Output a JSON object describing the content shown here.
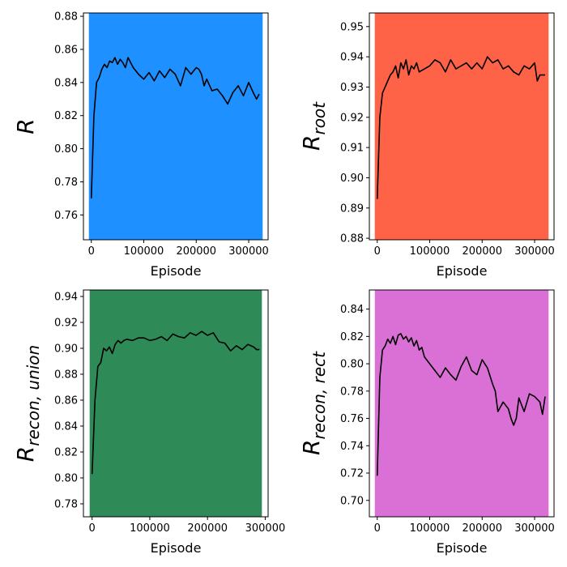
{
  "chart_data": [
    {
      "type": "line",
      "ylabel_main": "R",
      "ylabel_sub": "",
      "xlabel": "Episode",
      "xlim": [
        -15000,
        337000
      ],
      "ylim": [
        0.745,
        0.882
      ],
      "xticks": [
        0,
        100000,
        200000,
        300000
      ],
      "yticks": [
        0.76,
        0.78,
        0.8,
        0.82,
        0.84,
        0.86,
        0.88
      ],
      "ytick_decimals": 2,
      "scatter_color": "#1E90FF",
      "scatter_x_range": [
        0,
        322000
      ],
      "line_color": "#000000",
      "x": [
        0,
        5000,
        10000,
        15000,
        20000,
        25000,
        30000,
        35000,
        40000,
        45000,
        50000,
        55000,
        60000,
        65000,
        70000,
        80000,
        90000,
        100000,
        110000,
        120000,
        130000,
        140000,
        150000,
        160000,
        170000,
        180000,
        190000,
        200000,
        205000,
        210000,
        215000,
        220000,
        230000,
        240000,
        250000,
        260000,
        270000,
        280000,
        290000,
        300000,
        310000,
        315000,
        320000
      ],
      "y": [
        0.77,
        0.82,
        0.84,
        0.843,
        0.848,
        0.851,
        0.849,
        0.853,
        0.852,
        0.855,
        0.851,
        0.854,
        0.852,
        0.849,
        0.855,
        0.849,
        0.845,
        0.842,
        0.846,
        0.841,
        0.847,
        0.843,
        0.848,
        0.845,
        0.838,
        0.849,
        0.845,
        0.849,
        0.848,
        0.845,
        0.838,
        0.842,
        0.835,
        0.836,
        0.832,
        0.827,
        0.834,
        0.838,
        0.832,
        0.84,
        0.833,
        0.83,
        0.833
      ]
    },
    {
      "type": "line",
      "ylabel_main": "R",
      "ylabel_sub": "root",
      "xlabel": "Episode",
      "xlim": [
        -15000,
        337000
      ],
      "ylim": [
        0.8795,
        0.9545
      ],
      "xticks": [
        0,
        100000,
        200000,
        300000
      ],
      "yticks": [
        0.88,
        0.89,
        0.9,
        0.91,
        0.92,
        0.93,
        0.94,
        0.95
      ],
      "ytick_decimals": 2,
      "scatter_color": "#FF6347",
      "scatter_x_range": [
        0,
        322000
      ],
      "line_color": "#000000",
      "x": [
        0,
        5000,
        10000,
        15000,
        20000,
        25000,
        30000,
        35000,
        40000,
        45000,
        50000,
        55000,
        60000,
        65000,
        70000,
        75000,
        80000,
        90000,
        100000,
        110000,
        120000,
        130000,
        140000,
        150000,
        160000,
        170000,
        180000,
        190000,
        200000,
        210000,
        220000,
        230000,
        240000,
        250000,
        260000,
        270000,
        280000,
        290000,
        300000,
        305000,
        310000,
        320000
      ],
      "y": [
        0.893,
        0.92,
        0.928,
        0.93,
        0.932,
        0.934,
        0.935,
        0.937,
        0.933,
        0.938,
        0.936,
        0.939,
        0.934,
        0.937,
        0.936,
        0.938,
        0.935,
        0.936,
        0.937,
        0.939,
        0.938,
        0.935,
        0.939,
        0.936,
        0.937,
        0.938,
        0.936,
        0.938,
        0.936,
        0.94,
        0.938,
        0.939,
        0.936,
        0.937,
        0.935,
        0.934,
        0.937,
        0.936,
        0.938,
        0.932,
        0.934,
        0.934
      ]
    },
    {
      "type": "line",
      "ylabel_main": "R",
      "ylabel_sub": "recon, union",
      "xlabel": "Episode",
      "xlim": [
        -15000,
        305000
      ],
      "ylim": [
        0.77,
        0.945
      ],
      "xticks": [
        0,
        100000,
        200000,
        300000
      ],
      "yticks": [
        0.78,
        0.8,
        0.82,
        0.84,
        0.86,
        0.88,
        0.9,
        0.92,
        0.94
      ],
      "ytick_decimals": 2,
      "scatter_color": "#2E8B57",
      "scatter_x_range": [
        0,
        290000
      ],
      "line_color": "#000000",
      "x": [
        0,
        5000,
        10000,
        15000,
        20000,
        25000,
        30000,
        35000,
        40000,
        45000,
        50000,
        55000,
        60000,
        70000,
        80000,
        90000,
        100000,
        110000,
        120000,
        130000,
        140000,
        150000,
        160000,
        170000,
        180000,
        190000,
        200000,
        210000,
        220000,
        230000,
        240000,
        250000,
        260000,
        270000,
        280000,
        285000,
        290000
      ],
      "y": [
        0.803,
        0.86,
        0.886,
        0.889,
        0.9,
        0.898,
        0.901,
        0.896,
        0.903,
        0.906,
        0.904,
        0.906,
        0.907,
        0.906,
        0.908,
        0.908,
        0.906,
        0.907,
        0.909,
        0.906,
        0.911,
        0.909,
        0.908,
        0.912,
        0.91,
        0.913,
        0.91,
        0.912,
        0.905,
        0.904,
        0.898,
        0.902,
        0.899,
        0.903,
        0.901,
        0.899,
        0.899
      ]
    },
    {
      "type": "line",
      "ylabel_main": "R",
      "ylabel_sub": "recon, rect",
      "xlabel": "Episode",
      "xlim": [
        -15000,
        337000
      ],
      "ylim": [
        0.688,
        0.854
      ],
      "xticks": [
        0,
        100000,
        200000,
        300000
      ],
      "yticks": [
        0.7,
        0.72,
        0.74,
        0.76,
        0.78,
        0.8,
        0.82,
        0.84
      ],
      "ytick_decimals": 2,
      "scatter_color": "#DA70D6",
      "scatter_x_range": [
        0,
        322000
      ],
      "line_color": "#000000",
      "x": [
        0,
        5000,
        10000,
        15000,
        20000,
        25000,
        30000,
        35000,
        40000,
        45000,
        50000,
        55000,
        60000,
        65000,
        70000,
        75000,
        80000,
        85000,
        90000,
        100000,
        110000,
        120000,
        130000,
        140000,
        150000,
        160000,
        170000,
        180000,
        190000,
        200000,
        210000,
        220000,
        225000,
        230000,
        240000,
        250000,
        255000,
        260000,
        265000,
        270000,
        280000,
        290000,
        300000,
        310000,
        315000,
        320000
      ],
      "y": [
        0.718,
        0.79,
        0.81,
        0.813,
        0.818,
        0.815,
        0.82,
        0.814,
        0.821,
        0.822,
        0.818,
        0.82,
        0.816,
        0.819,
        0.813,
        0.817,
        0.81,
        0.812,
        0.805,
        0.8,
        0.795,
        0.79,
        0.797,
        0.792,
        0.788,
        0.798,
        0.805,
        0.795,
        0.792,
        0.803,
        0.797,
        0.785,
        0.78,
        0.765,
        0.772,
        0.767,
        0.76,
        0.755,
        0.76,
        0.775,
        0.765,
        0.778,
        0.776,
        0.772,
        0.763,
        0.776
      ]
    }
  ]
}
